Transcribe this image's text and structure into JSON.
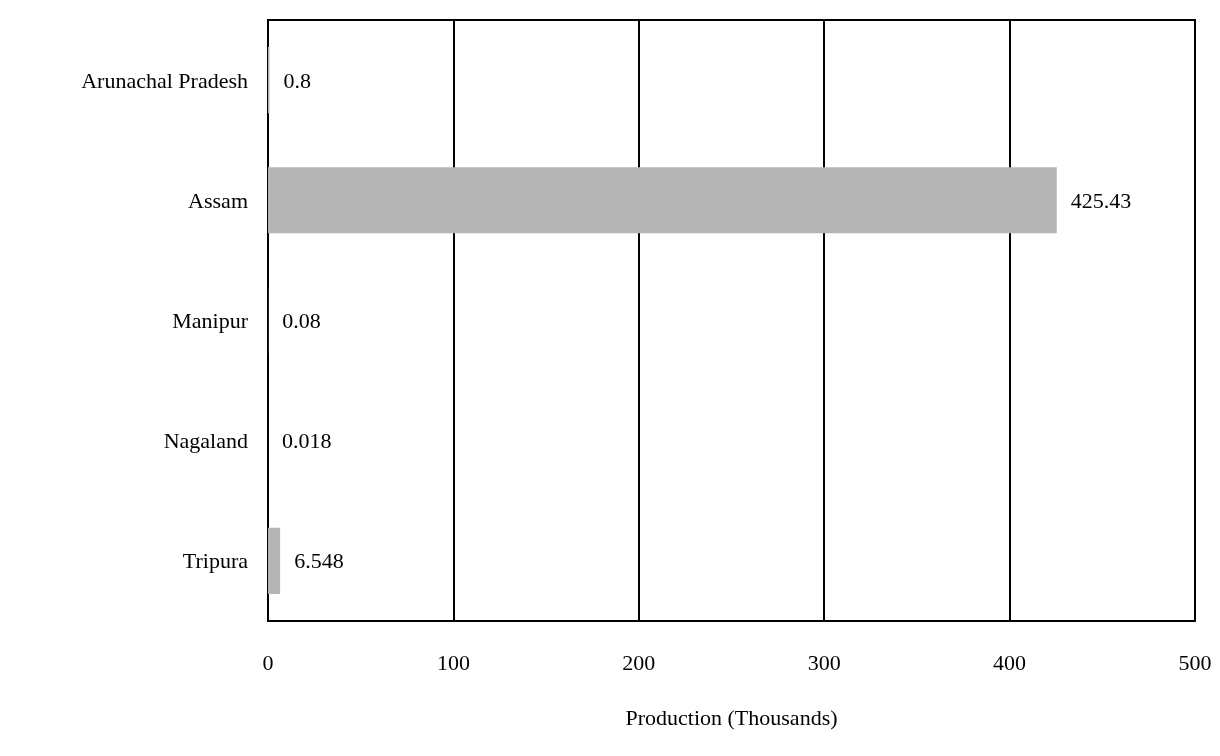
{
  "chart_data": {
    "type": "bar",
    "orientation": "horizontal",
    "categories": [
      "Arunachal Pradesh",
      "Assam",
      "Manipur",
      "Nagaland",
      "Tripura"
    ],
    "values": [
      0.8,
      425.43,
      0.08,
      0.018,
      6.548
    ],
    "color": "#b4b4b4",
    "xlabel": "Production (Thousands)",
    "xlim": [
      0,
      500
    ],
    "xticks": [
      0,
      100,
      200,
      300,
      400,
      500
    ],
    "grid": "x",
    "data_labels": true
  }
}
